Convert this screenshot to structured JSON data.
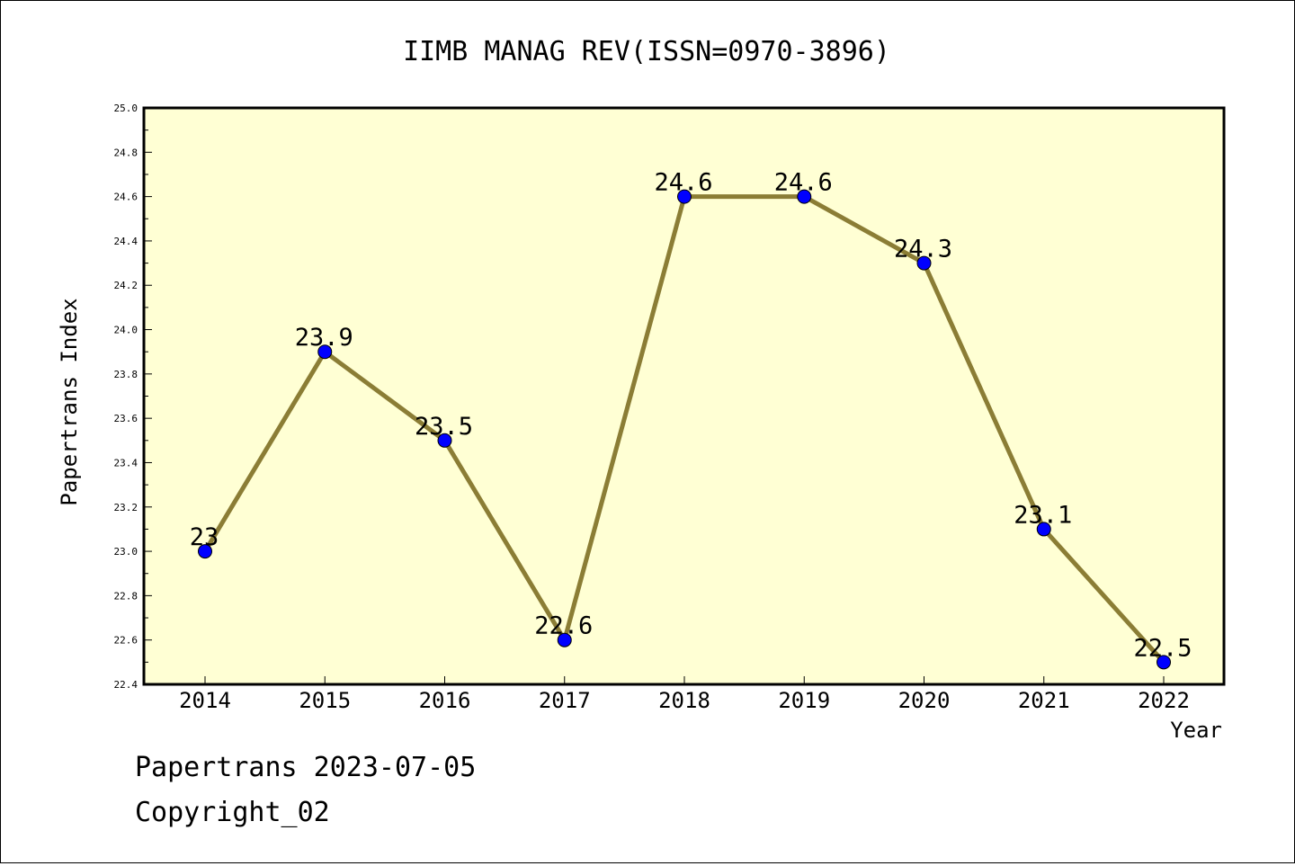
{
  "chart_data": {
    "type": "line",
    "title": "IIMB MANAG REV(ISSN=0970-3896)",
    "xlabel": "Year",
    "ylabel": "Papertrans Index",
    "x": [
      "2014",
      "2015",
      "2016",
      "2017",
      "2018",
      "2019",
      "2020",
      "2021",
      "2022"
    ],
    "series": [
      {
        "values": [
          23.0,
          23.9,
          23.5,
          22.6,
          24.6,
          24.6,
          24.3,
          23.1,
          22.5
        ]
      }
    ],
    "point_labels": [
      "23",
      "23.9",
      "23.5",
      "22.6",
      "24.6",
      "24.6",
      "24.3",
      "23.1",
      "22.5"
    ],
    "ylim": [
      22.4,
      25.0
    ],
    "yticks": [
      "22.4",
      "22.6",
      "22.8",
      "23.0",
      "23.2",
      "23.4",
      "23.6",
      "23.8",
      "24.0",
      "24.2",
      "24.4",
      "24.6",
      "24.8",
      "25.0"
    ],
    "grid": false,
    "legend": "none",
    "colors": {
      "plot_background": "#ffffd4",
      "line": "#8b7d35",
      "marker": "#0000ff"
    }
  },
  "footer": {
    "date_line": "Papertrans 2023-07-05",
    "copyright": "Copyright_02"
  }
}
